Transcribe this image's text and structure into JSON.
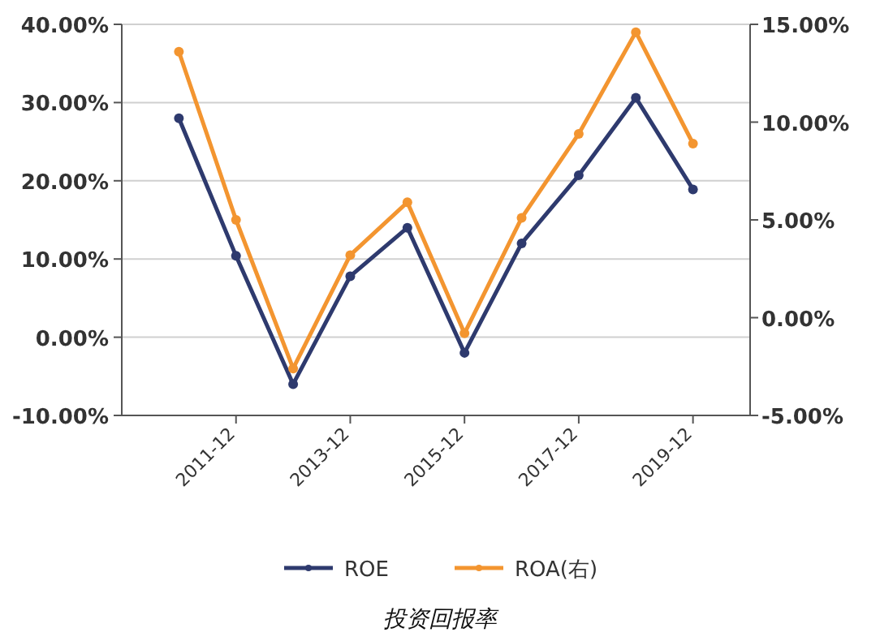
{
  "chart_data": {
    "type": "line",
    "title": "投资回报率",
    "categories": [
      null,
      "2011-12",
      null,
      "2013-12",
      null,
      "2015-12",
      null,
      "2017-12",
      null,
      "2019-12"
    ],
    "series": [
      {
        "name": "ROE",
        "color": "#2e3a6e",
        "values": [
          28.0,
          10.4,
          -6.0,
          7.8,
          14.0,
          -2.0,
          12.0,
          20.7,
          30.6,
          18.9
        ]
      },
      {
        "name": "ROA(右)",
        "color": "#f39530",
        "axis": "y2",
        "values": [
          13.6,
          5.0,
          -2.6,
          3.2,
          5.9,
          -0.8,
          5.1,
          9.4,
          14.6,
          8.9
        ]
      }
    ],
    "ylim": [
      -10,
      40
    ],
    "yticks": [
      {
        "value": -10,
        "label": "-10.00%"
      },
      {
        "value": 0,
        "label": "0.00%"
      },
      {
        "value": 10,
        "label": "10.00%"
      },
      {
        "value": 20,
        "label": "20.00%"
      },
      {
        "value": 30,
        "label": "30.00%"
      },
      {
        "value": 40,
        "label": "40.00%"
      }
    ],
    "y2lim": [
      -5,
      15
    ],
    "y2ticks": [
      {
        "value": -5,
        "label": "-5.00%"
      },
      {
        "value": 0,
        "label": "0.00%"
      },
      {
        "value": 5,
        "label": "5.00%"
      },
      {
        "value": 10,
        "label": "10.00%"
      },
      {
        "value": 15,
        "label": "15.00%"
      }
    ],
    "grid": "y",
    "legend": "bottom",
    "marker": "circle",
    "line_style": "solid"
  }
}
